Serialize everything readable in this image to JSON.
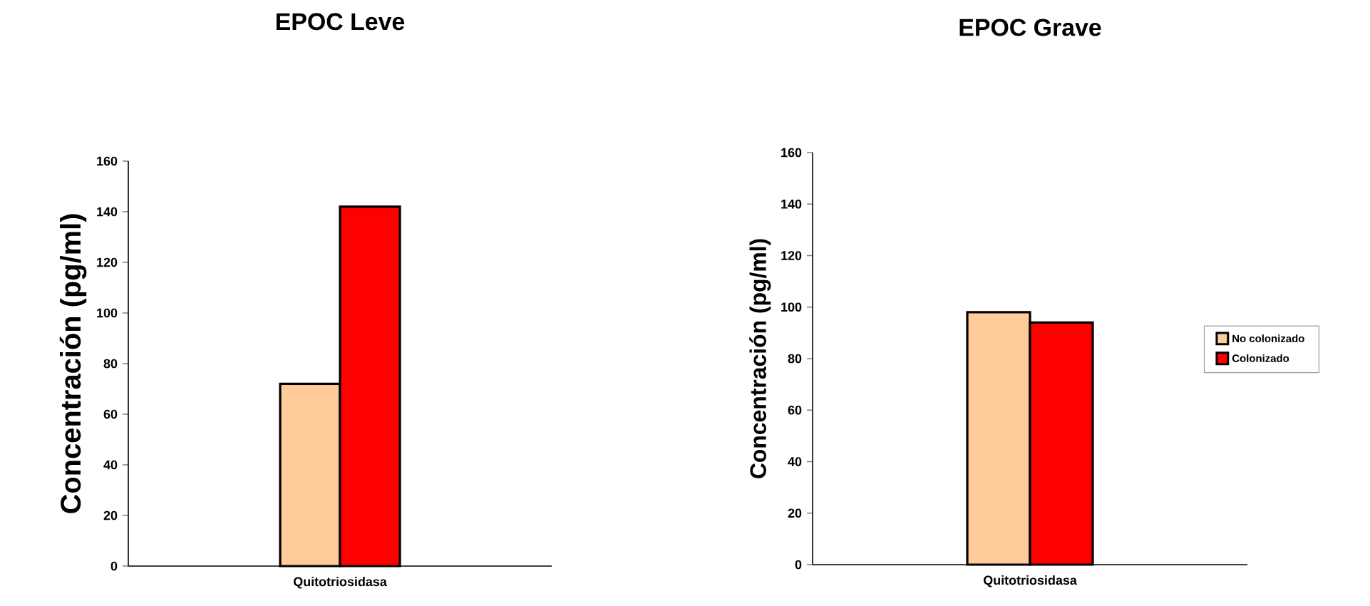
{
  "chart_data": [
    {
      "type": "bar",
      "title": "EPOC Leve",
      "ylabel": "Concentración (pg/ml)",
      "categories": [
        "Quitotriosidasa"
      ],
      "series": [
        {
          "color": "#ffcc99",
          "values": [
            72
          ]
        },
        {
          "color": "#ff0000",
          "values": [
            142
          ]
        }
      ],
      "ylim": [
        0,
        160
      ],
      "yticks": [
        0,
        20,
        40,
        60,
        80,
        100,
        120,
        140,
        160
      ]
    },
    {
      "type": "bar",
      "title": "EPOC Grave",
      "ylabel": "Concentración (pg/ml)",
      "categories": [
        "Quitotriosidasa"
      ],
      "series": [
        {
          "name": "No colonizado",
          "color": "#ffcc99",
          "values": [
            98
          ]
        },
        {
          "name": "Colonizado",
          "color": "#ff0000",
          "values": [
            94
          ]
        }
      ],
      "ylim": [
        0,
        160
      ],
      "yticks": [
        0,
        20,
        40,
        60,
        80,
        100,
        120,
        140,
        160
      ],
      "legend": "right"
    }
  ]
}
